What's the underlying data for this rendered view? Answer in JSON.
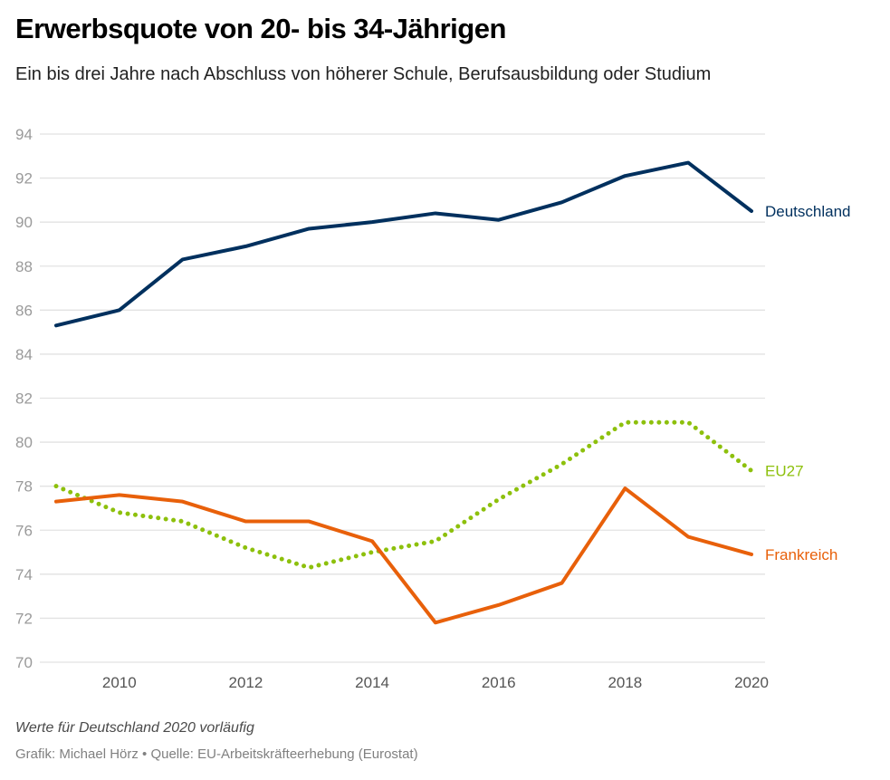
{
  "header": {
    "title": "Erwerbsquote von 20- bis 34-Jährigen",
    "subtitle": "Ein bis drei Jahre nach Abschluss von höherer Schule, Berufsausbildung oder Studium"
  },
  "footer": {
    "note": "Werte für Deutschland 2020 vorläufig",
    "source": "Grafik: Michael Hörz • Quelle: EU-Arbeitskräfteerhebung (Eurostat)"
  },
  "chart_data": {
    "type": "line",
    "title": "Erwerbsquote von 20- bis 34-Jährigen",
    "subtitle": "Ein bis drei Jahre nach Abschluss von höherer Schule, Berufsausbildung oder Studium",
    "xlabel": "",
    "ylabel": "",
    "x": [
      2009,
      2010,
      2011,
      2012,
      2013,
      2014,
      2015,
      2016,
      2017,
      2018,
      2019,
      2020
    ],
    "xticks": [
      2010,
      2012,
      2014,
      2016,
      2018,
      2020
    ],
    "xlim": [
      2009,
      2020
    ],
    "yticks": [
      70,
      72,
      74,
      76,
      78,
      80,
      82,
      84,
      86,
      88,
      90,
      92,
      94
    ],
    "ylim": [
      70,
      94
    ],
    "grid": true,
    "legend": "direct labels at line ends (right)",
    "series": [
      {
        "name": "Deutschland",
        "color": "#00305e",
        "style": "solid",
        "values": [
          85.3,
          86.0,
          88.3,
          88.9,
          89.7,
          90.0,
          90.4,
          90.1,
          90.9,
          92.1,
          92.7,
          90.5
        ]
      },
      {
        "name": "EU27",
        "color": "#8dc00c",
        "style": "dotted",
        "values": [
          78.0,
          76.8,
          76.4,
          75.2,
          74.3,
          75.0,
          75.5,
          77.4,
          79.0,
          80.9,
          80.9,
          78.7
        ]
      },
      {
        "name": "Frankreich",
        "color": "#e8600a",
        "style": "solid",
        "values": [
          77.3,
          77.6,
          77.3,
          76.4,
          76.4,
          75.5,
          71.8,
          72.6,
          73.6,
          77.9,
          75.7,
          74.9
        ]
      }
    ]
  }
}
